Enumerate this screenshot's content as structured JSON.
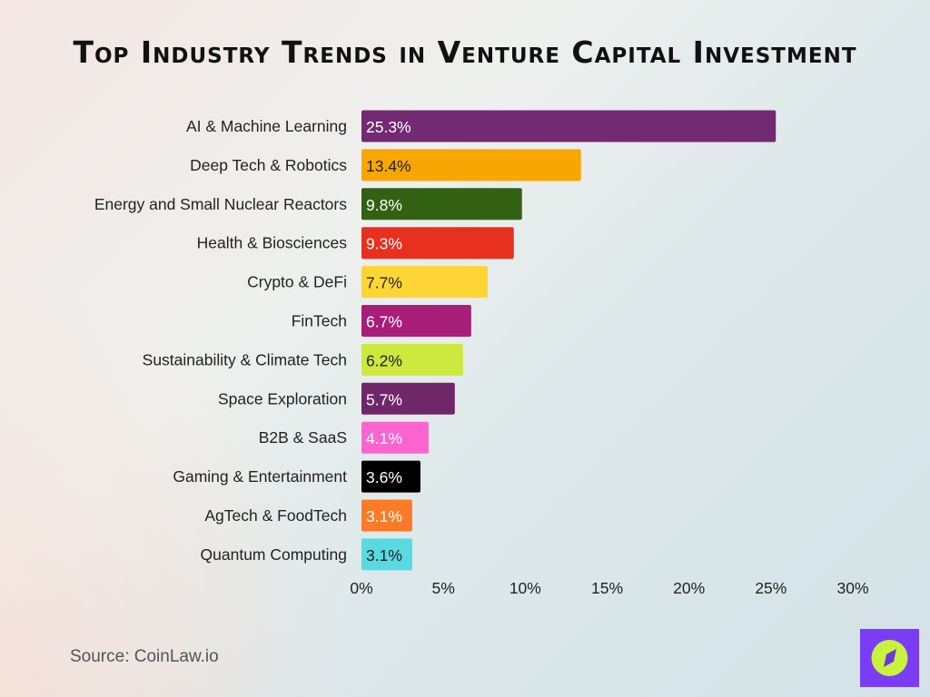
{
  "chart_data": {
    "type": "bar",
    "orientation": "horizontal",
    "title": "Top Industry Trends in Venture Capital Investment",
    "categories": [
      "AI & Machine Learning",
      "Deep Tech & Robotics",
      "Energy and Small Nuclear Reactors",
      "Health & Biosciences",
      "Crypto & DeFi",
      "FinTech",
      "Sustainability & Climate Tech",
      "Space Exploration",
      "B2B & SaaS",
      "Gaming & Entertainment",
      "AgTech & FoodTech",
      "Quantum Computing"
    ],
    "values": [
      25.3,
      13.4,
      9.8,
      9.3,
      7.7,
      6.7,
      6.2,
      5.7,
      4.1,
      3.6,
      3.1,
      3.1
    ],
    "data_labels": [
      "25.3%",
      "13.4%",
      "9.8%",
      "9.3%",
      "7.7%",
      "6.7%",
      "6.2%",
      "5.7%",
      "4.1%",
      "3.6%",
      "3.1%",
      "3.1%"
    ],
    "colors": [
      "#722a72",
      "#f9a602",
      "#336114",
      "#e8301f",
      "#fdd535",
      "#a81e7a",
      "#cde83e",
      "#70276a",
      "#fc65d0",
      "#000000",
      "#fc7a28",
      "#59d9e1"
    ],
    "label_colors": [
      "#ffffff",
      "#222222",
      "#ffffff",
      "#ffffff",
      "#222222",
      "#ffffff",
      "#222222",
      "#ffffff",
      "#ffffff",
      "#ffffff",
      "#ffffff",
      "#222222"
    ],
    "xlim": [
      0,
      30
    ],
    "xticks": [
      "0%",
      "5%",
      "10%",
      "15%",
      "20%",
      "25%",
      "30%"
    ],
    "xlabel": "",
    "ylabel": "",
    "grid": false
  },
  "source": "Source: CoinLaw.io",
  "logo": {
    "icon": "compass-icon",
    "background": "#7b3cf6",
    "accent": "#c9f23f"
  }
}
